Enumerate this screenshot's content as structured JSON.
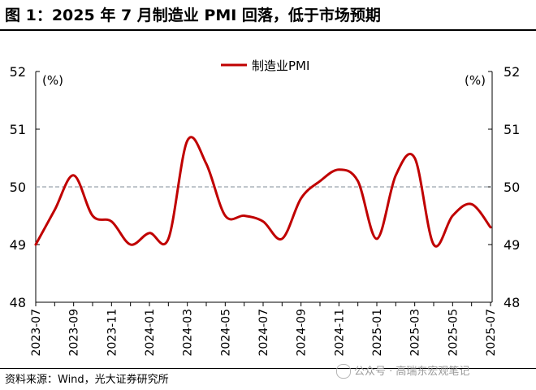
{
  "title": "图 1：2025 年 7 月制造业 PMI 回落，低于市场预期",
  "source": "资料来源：Wind，光大证券研究所",
  "watermark": "公众号 · 高瑞东宏观笔记",
  "colors": {
    "series": "#c00000",
    "reference": "#9aa3ad",
    "axis": "#000000"
  },
  "chart_data": {
    "type": "line",
    "title": "",
    "ylabel_left": "(%)",
    "ylabel_right": "(%)",
    "ylim": [
      48,
      52
    ],
    "yticks": [
      48,
      49,
      50,
      51,
      52
    ],
    "reference_line": 50,
    "legend_position": "top-center",
    "grid": false,
    "categories": [
      "2023-07",
      "2023-08",
      "2023-09",
      "2023-10",
      "2023-11",
      "2023-12",
      "2024-01",
      "2024-02",
      "2024-03",
      "2024-04",
      "2024-05",
      "2024-06",
      "2024-07",
      "2024-08",
      "2024-09",
      "2024-10",
      "2024-11",
      "2024-12",
      "2025-01",
      "2025-02",
      "2025-03",
      "2025-04",
      "2025-05",
      "2025-06",
      "2025-07"
    ],
    "xtick_labels": [
      "2023-07",
      "2023-09",
      "2023-11",
      "2024-01",
      "2024-03",
      "2024-05",
      "2024-07",
      "2024-09",
      "2024-11",
      "2025-01",
      "2025-03",
      "2025-05",
      "2025-07"
    ],
    "series": [
      {
        "name": "制造业PMI",
        "values": [
          49.0,
          49.6,
          50.2,
          49.5,
          49.4,
          49.0,
          49.2,
          49.1,
          50.8,
          50.4,
          49.5,
          49.5,
          49.4,
          49.1,
          49.8,
          50.1,
          50.3,
          50.1,
          49.1,
          50.2,
          50.5,
          49.0,
          49.5,
          49.7,
          49.3
        ]
      }
    ]
  }
}
